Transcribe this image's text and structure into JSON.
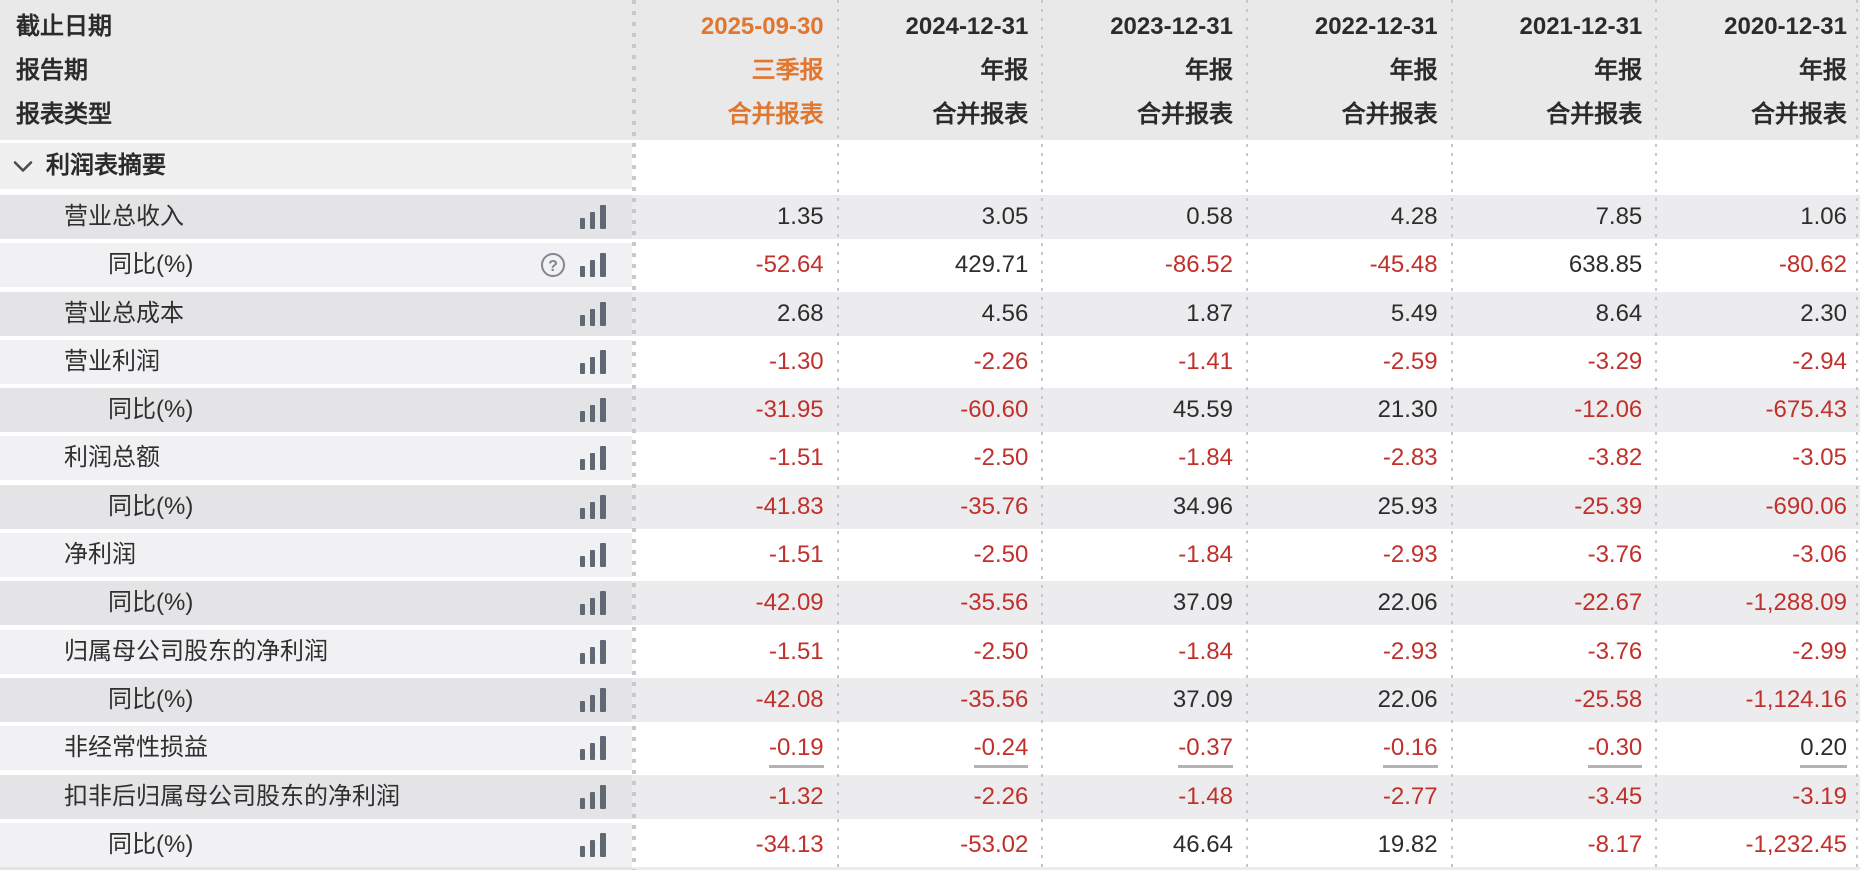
{
  "colors": {
    "highlight_orange": "#e1762f",
    "negative_red": "#c1302a",
    "text_dark": "#2d2d2d",
    "header_bg": "#e9e9ea",
    "row_gray_data": "#ececee",
    "row_gray_label": "#e4e4e6",
    "row_lite_label": "#f1f1f3",
    "icon_gray": "#5f6873"
  },
  "header": {
    "row_labels": [
      "截止日期",
      "报告期",
      "报表类型"
    ],
    "columns": [
      {
        "date": "2025-09-30",
        "period": "三季报",
        "report_type": "合并报表",
        "highlighted": true
      },
      {
        "date": "2024-12-31",
        "period": "年报",
        "report_type": "合并报表",
        "highlighted": false
      },
      {
        "date": "2023-12-31",
        "period": "年报",
        "report_type": "合并报表",
        "highlighted": false
      },
      {
        "date": "2022-12-31",
        "period": "年报",
        "report_type": "合并报表",
        "highlighted": false
      },
      {
        "date": "2021-12-31",
        "period": "年报",
        "report_type": "合并报表",
        "highlighted": false
      },
      {
        "date": "2020-12-31",
        "period": "年报",
        "report_type": "合并报表",
        "highlighted": false
      }
    ]
  },
  "section": {
    "label": "利润表摘要",
    "state": "expanded",
    "chevron_icon": "chevron-down-icon"
  },
  "icons": {
    "trend": "bar-chart-icon",
    "help": "help-circle-icon"
  },
  "rows": [
    {
      "label": "营业总收入",
      "indent": 1,
      "has_help": false,
      "underline": false,
      "values": [
        "1.35",
        "3.05",
        "0.58",
        "4.28",
        "7.85",
        "1.06"
      ]
    },
    {
      "label": "同比(%)",
      "indent": 2,
      "has_help": true,
      "underline": false,
      "values": [
        "-52.64",
        "429.71",
        "-86.52",
        "-45.48",
        "638.85",
        "-80.62"
      ]
    },
    {
      "label": "营业总成本",
      "indent": 1,
      "has_help": false,
      "underline": false,
      "values": [
        "2.68",
        "4.56",
        "1.87",
        "5.49",
        "8.64",
        "2.30"
      ]
    },
    {
      "label": "营业利润",
      "indent": 1,
      "has_help": false,
      "underline": false,
      "values": [
        "-1.30",
        "-2.26",
        "-1.41",
        "-2.59",
        "-3.29",
        "-2.94"
      ]
    },
    {
      "label": "同比(%)",
      "indent": 2,
      "has_help": false,
      "underline": false,
      "values": [
        "-31.95",
        "-60.60",
        "45.59",
        "21.30",
        "-12.06",
        "-675.43"
      ]
    },
    {
      "label": "利润总额",
      "indent": 1,
      "has_help": false,
      "underline": false,
      "values": [
        "-1.51",
        "-2.50",
        "-1.84",
        "-2.83",
        "-3.82",
        "-3.05"
      ]
    },
    {
      "label": "同比(%)",
      "indent": 2,
      "has_help": false,
      "underline": false,
      "values": [
        "-41.83",
        "-35.76",
        "34.96",
        "25.93",
        "-25.39",
        "-690.06"
      ]
    },
    {
      "label": "净利润",
      "indent": 1,
      "has_help": false,
      "underline": false,
      "values": [
        "-1.51",
        "-2.50",
        "-1.84",
        "-2.93",
        "-3.76",
        "-3.06"
      ]
    },
    {
      "label": "同比(%)",
      "indent": 2,
      "has_help": false,
      "underline": false,
      "values": [
        "-42.09",
        "-35.56",
        "37.09",
        "22.06",
        "-22.67",
        "-1,288.09"
      ]
    },
    {
      "label": "归属母公司股东的净利润",
      "indent": 1,
      "has_help": false,
      "underline": false,
      "values": [
        "-1.51",
        "-2.50",
        "-1.84",
        "-2.93",
        "-3.76",
        "-2.99"
      ]
    },
    {
      "label": "同比(%)",
      "indent": 2,
      "has_help": false,
      "underline": false,
      "values": [
        "-42.08",
        "-35.56",
        "37.09",
        "22.06",
        "-25.58",
        "-1,124.16"
      ]
    },
    {
      "label": "非经常性损益",
      "indent": 1,
      "has_help": false,
      "underline": true,
      "values": [
        "-0.19",
        "-0.24",
        "-0.37",
        "-0.16",
        "-0.30",
        "0.20"
      ]
    },
    {
      "label": "扣非后归属母公司股东的净利润",
      "indent": 1,
      "has_help": false,
      "underline": false,
      "values": [
        "-1.32",
        "-2.26",
        "-1.48",
        "-2.77",
        "-3.45",
        "-3.19"
      ]
    },
    {
      "label": "同比(%)",
      "indent": 2,
      "has_help": false,
      "underline": false,
      "values": [
        "-34.13",
        "-53.02",
        "46.64",
        "19.82",
        "-8.17",
        "-1,232.45"
      ]
    }
  ]
}
